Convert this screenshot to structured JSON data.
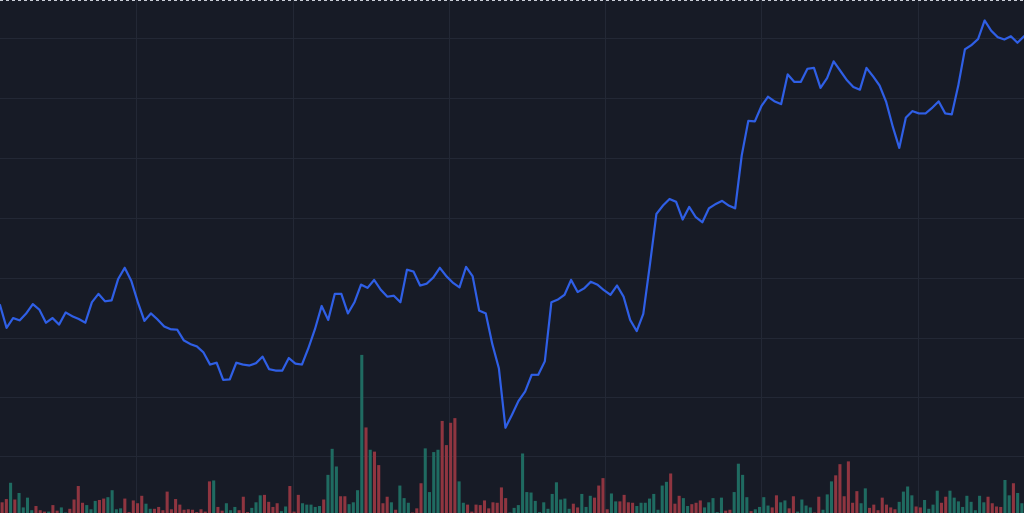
{
  "colors": {
    "background": "#171b26",
    "grid": "#232835",
    "price_line": "#2f5fe6",
    "volume_up": "#1f6b61",
    "volume_down": "#8f3540",
    "top_dash": "#c8ccd6"
  },
  "chart_data": {
    "type": "line",
    "title": "",
    "xlabel": "",
    "ylabel": "",
    "grid": true,
    "legend": "none",
    "ylim": [
      0,
      100
    ],
    "volume_ylim": [
      0,
      100
    ],
    "series": [
      {
        "kind": "line",
        "values": [
          34.4,
          29.5,
          31.6,
          31.1,
          32.6,
          34.6,
          33.4,
          30.6,
          31.6,
          30.2,
          32.8,
          32.0,
          31.4,
          30.6,
          35.0,
          36.8,
          35.2,
          35.4,
          40.0,
          42.4,
          39.6,
          35.0,
          31.0,
          32.6,
          31.3,
          29.8,
          29.2,
          29.1,
          26.8,
          26.0,
          25.5,
          24.2,
          21.6,
          22.0,
          18.3,
          18.4,
          22.0,
          21.6,
          21.4,
          21.9,
          23.3,
          20.6,
          20.3,
          20.3,
          23.0,
          21.8,
          21.6,
          25.2,
          29.3,
          34.2,
          31.2,
          36.8,
          36.8,
          32.6,
          35.0,
          38.8,
          38.1,
          39.8,
          37.7,
          36.2,
          36.4,
          35.0,
          42.0,
          41.6,
          38.6,
          39.0,
          40.3,
          42.4,
          40.6,
          39.2,
          38.2,
          42.6,
          40.6,
          33.2,
          32.6,
          26.0,
          20.8,
          8.0,
          10.8,
          13.8,
          15.8,
          19.4,
          19.4,
          22.3,
          35.0,
          35.6,
          36.6,
          39.8,
          37.2,
          38.0,
          39.4,
          38.8,
          37.6,
          36.6,
          38.6,
          36.2,
          31.2,
          28.8,
          32.5,
          43.0,
          54.0,
          55.8,
          57.2,
          56.6,
          52.8,
          55.5,
          53.3,
          52.2,
          55.2,
          56.1,
          56.8,
          55.8,
          55.2,
          66.6,
          74.0,
          73.9,
          77.2,
          79.2,
          78.2,
          77.6,
          84.0,
          82.4,
          82.4,
          85.2,
          85.4,
          81.1,
          83.2,
          86.8,
          84.8,
          82.8,
          81.3,
          80.7,
          85.4,
          83.6,
          81.6,
          78.1,
          72.8,
          68.2,
          74.7,
          76.1,
          75.6,
          75.6,
          76.8,
          78.2,
          75.6,
          75.4,
          81.7,
          89.4,
          90.3,
          91.6,
          95.6,
          93.4,
          92.0,
          91.5,
          92.2,
          90.8,
          92.2
        ]
      },
      {
        "kind": "volume",
        "values": [
          2.3,
          3.0,
          6.5,
          2.9,
          4.3,
          1.2,
          3.3,
          0.6,
          1.5,
          0.6,
          0.3,
          0.3,
          1.7,
          0.5,
          1.2,
          0.1,
          0.9,
          2.9,
          5.8,
          2.2,
          1.7,
          0.8,
          2.6,
          2.8,
          3.1,
          3.4,
          4.9,
          0.8,
          1.0,
          3.1,
          0.2,
          2.7,
          2.1,
          3.7,
          2.0,
          0.9,
          0.9,
          1.3,
          0.6,
          4.6,
          0.8,
          3.0,
          1.8,
          0.7,
          0.8,
          0.7,
          0.2,
          0.8,
          0.3,
          6.8,
          7.0,
          1.3,
          0.5,
          2.1,
          0.6,
          1.3,
          0.6,
          3.5,
          0.2,
          1.1,
          2.3,
          3.8,
          3.9,
          2.4,
          1.3,
          2.1,
          0.4,
          1.4,
          5.8,
          0.3,
          3.9,
          2.1,
          1.8,
          1.8,
          1.3,
          1.5,
          2.9,
          8.2,
          13.8,
          10.0,
          3.6,
          3.6,
          1.9,
          2.3,
          4.9,
          34.0,
          18.4,
          13.6,
          13.2,
          10.3,
          2.1,
          3.5,
          2.3,
          0.7,
          5.9,
          3.2,
          2.2,
          0.1,
          1.0,
          6.4,
          13.9,
          4.5,
          13.1,
          13.6,
          19.8,
          14.6,
          19.4,
          20.4,
          6.8,
          2.2,
          1.8,
          0.3,
          1.8,
          1.7,
          2.7,
          1.0,
          2.3,
          2.2,
          5.5,
          3.2,
          0.1,
          1.1,
          1.7,
          12.8,
          4.5,
          4.4,
          2.6,
          0.2,
          2.3,
          0.9,
          4.1,
          6.6,
          2.9,
          3.1,
          0.9,
          2.0,
          1.2,
          4.1,
          1.3,
          3.7,
          3.3,
          5.9,
          7.5,
          0.8,
          4.2,
          2.5,
          2.5,
          3.9,
          2.3,
          2.2,
          1.5,
          2.2,
          2.2,
          3.1,
          4.1,
          0.7,
          5.9,
          6.7,
          8.5,
          2.0,
          3.7,
          3.2,
          1.5,
          1.9,
          2.2,
          2.7,
          1.2,
          2.3,
          3.2,
          0.2,
          3.3,
          0.5,
          0.7,
          4.5,
          10.6,
          8.2,
          3.4,
          0.4,
          0.8,
          1.3,
          3.4,
          1.6,
          1.2,
          3.8,
          2.3,
          2.7,
          1.0,
          3.6,
          0.3,
          2.9,
          1.6,
          1.2,
          0.1,
          3.5,
          0.7,
          4.0,
          6.8,
          8.1,
          10.5,
          3.6,
          11.1,
          2.2,
          4.7,
          2.1,
          5.3,
          1.1,
          1.8,
          0.6,
          3.3,
          1.8,
          1.2,
          0.8,
          2.4,
          4.6,
          5.7,
          3.8,
          1.4,
          1.2,
          2.8,
          0.9,
          1.8,
          4.8,
          2.2,
          3.5,
          4.8,
          3.3,
          2.5,
          1.3,
          3.7,
          2.4,
          0.6,
          3.7,
          2.3,
          3.5,
          2.1,
          1.4,
          1.3,
          7.1,
          3.8,
          6.4,
          4.3,
          2.1
        ]
      }
    ]
  }
}
